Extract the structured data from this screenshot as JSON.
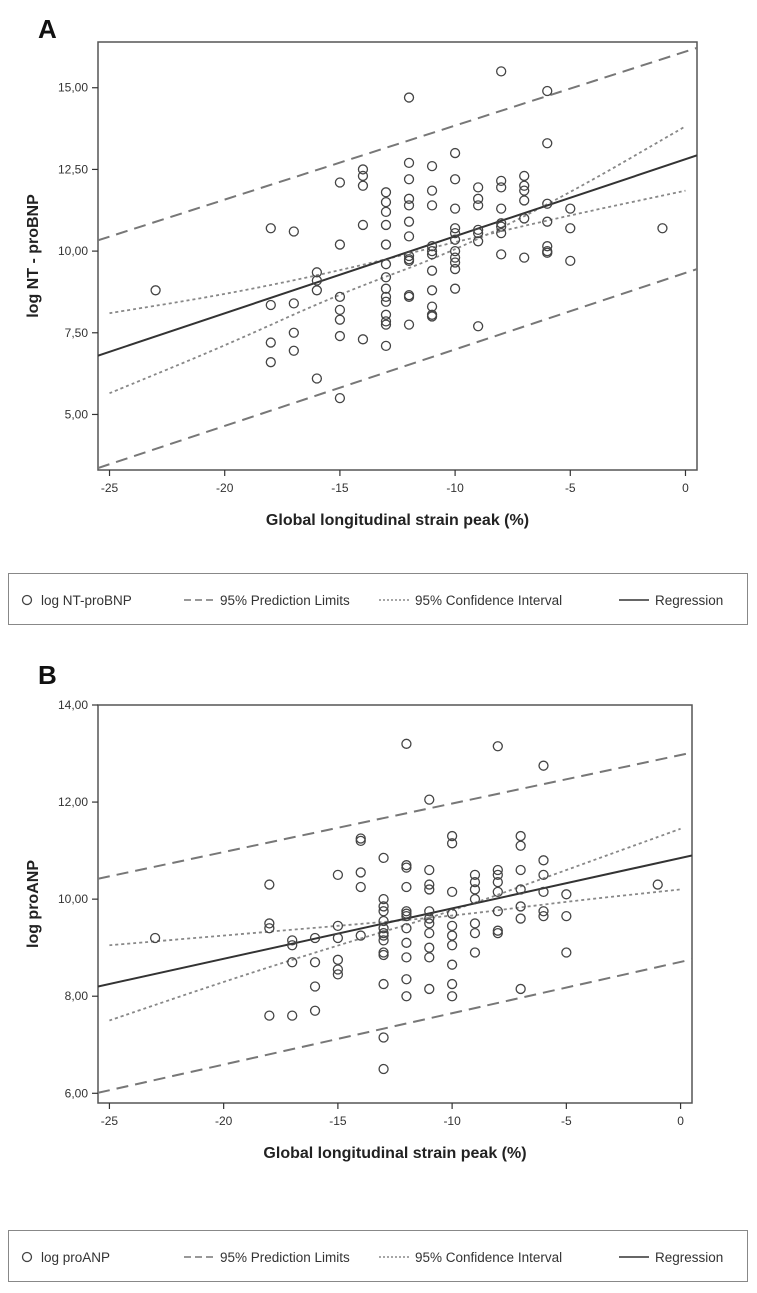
{
  "panels": [
    {
      "letter": "A",
      "chart_data": {
        "type": "scatter",
        "xlabel": "Global longitudinal strain peak (%)",
        "ylabel": "log NT - proBNP",
        "xlim": [
          -25.5,
          0.5
        ],
        "ylim": [
          3.3,
          16.4
        ],
        "x_ticks": [
          -25,
          -20,
          -15,
          -10,
          -5,
          0
        ],
        "x_tick_labels": [
          "-25",
          "-20",
          "-15",
          "-10",
          "-5",
          "0"
        ],
        "y_ticks": [
          5,
          7.5,
          10,
          12.5,
          15
        ],
        "y_tick_labels": [
          "5,00",
          "7,50",
          "10,00",
          "12,50",
          "15,00"
        ],
        "grid": false,
        "legend_position": "bottom",
        "series": [
          {
            "name": "log NT-proBNP",
            "kind": "points",
            "x": [
              -23,
              -18,
              -18,
              -18,
              -18,
              -17,
              -17,
              -17,
              -17,
              -16,
              -16,
              -16,
              -16,
              -15,
              -15,
              -15,
              -15,
              -15,
              -15,
              -15,
              -14,
              -14,
              -14,
              -14,
              -14,
              -13,
              -13,
              -13,
              -13,
              -13,
              -13,
              -13,
              -13,
              -13,
              -13,
              -13,
              -13,
              -13,
              -13,
              -12,
              -12,
              -12,
              -12,
              -12,
              -12,
              -12,
              -12,
              -12,
              -12,
              -12,
              -12,
              -12,
              -11,
              -11,
              -11,
              -11,
              -11,
              -11,
              -11,
              -11,
              -11,
              -11,
              -11,
              -10,
              -10,
              -10,
              -10,
              -10,
              -10,
              -10,
              -10,
              -10,
              -10,
              -10,
              -9,
              -9,
              -9,
              -9,
              -9,
              -9,
              -9,
              -8,
              -8,
              -8,
              -8,
              -8,
              -8,
              -8,
              -8,
              -7,
              -7,
              -7,
              -7,
              -7,
              -7,
              -6,
              -6,
              -6,
              -6,
              -6,
              -6,
              -6,
              -5,
              -5,
              -5,
              -1
            ],
            "y": [
              8.8,
              10.7,
              8.35,
              7.2,
              6.6,
              10.6,
              8.4,
              7.5,
              6.95,
              9.35,
              9.1,
              8.8,
              6.1,
              12.1,
              10.2,
              8.6,
              8.2,
              7.9,
              7.4,
              5.5,
              12.5,
              12.3,
              12.0,
              10.8,
              7.3,
              11.8,
              11.5,
              11.2,
              10.8,
              10.2,
              9.6,
              9.2,
              8.85,
              8.6,
              8.45,
              8.05,
              7.85,
              7.75,
              7.1,
              14.7,
              12.7,
              12.2,
              11.6,
              11.4,
              10.9,
              10.45,
              9.85,
              9.75,
              9.7,
              8.65,
              8.6,
              7.75,
              12.6,
              11.85,
              11.4,
              10.15,
              10.0,
              9.9,
              9.4,
              8.8,
              8.3,
              8.05,
              8.0,
              13.0,
              12.2,
              11.3,
              10.7,
              10.55,
              10.35,
              10.0,
              9.8,
              9.65,
              9.45,
              8.85,
              11.95,
              11.6,
              11.4,
              10.65,
              10.55,
              10.3,
              7.7,
              15.5,
              12.15,
              11.95,
              11.3,
              10.85,
              10.75,
              10.55,
              9.9,
              12.3,
              12.0,
              11.85,
              11.55,
              11.0,
              9.8,
              14.9,
              13.3,
              11.45,
              10.9,
              10.15,
              10.0,
              9.95,
              11.3,
              10.7,
              9.7,
              10.7
            ]
          },
          {
            "name": "95% Prediction Limits",
            "kind": "line",
            "dash": "long",
            "x": [
              -25.5,
              0.5
            ],
            "y": [
              10.33,
              16.22
            ]
          },
          {
            "name": "95% Prediction Limits",
            "kind": "line",
            "dash": "long",
            "x": [
              -25.5,
              0.5
            ],
            "y": [
              3.36,
              9.45
            ]
          },
          {
            "name": "95% Confidence Interval",
            "kind": "curve",
            "dash": "short",
            "x": [
              -25,
              -20,
              -15,
              -10,
              -5,
              0
            ],
            "y": [
              8.1,
              8.67,
              9.4,
              10.28,
              11.1,
              11.85
            ]
          },
          {
            "name": "95% Confidence Interval",
            "kind": "curve",
            "dash": "short",
            "x": [
              -25,
              -20,
              -15,
              -10,
              -5,
              0
            ],
            "y": [
              5.65,
              7.1,
              8.7,
              10.0,
              11.78,
              13.82
            ]
          },
          {
            "name": "Regression",
            "kind": "line",
            "dash": "solid",
            "x": [
              -25.5,
              0.5
            ],
            "y": [
              6.8,
              12.93
            ]
          }
        ]
      }
    },
    {
      "letter": "B",
      "chart_data": {
        "type": "scatter",
        "xlabel": "Global longitudinal strain peak (%)",
        "ylabel": "log proANP",
        "xlim": [
          -25.5,
          0.5
        ],
        "ylim": [
          5.8,
          14.0
        ],
        "x_ticks": [
          -25,
          -20,
          -15,
          -10,
          -5,
          0
        ],
        "x_tick_labels": [
          "-25",
          "-20",
          "-15",
          "-10",
          "-5",
          "0"
        ],
        "y_ticks": [
          6,
          8,
          10,
          12,
          14
        ],
        "y_tick_labels": [
          "6,00",
          "8,00",
          "10,00",
          "12,00",
          "14,00"
        ],
        "grid": false,
        "legend_position": "bottom",
        "series": [
          {
            "name": "log proANP",
            "kind": "points",
            "x": [
              -23,
              -18,
              -18,
              -18,
              -18,
              -17,
              -17,
              -17,
              -17,
              -16,
              -16,
              -16,
              -16,
              -15,
              -15,
              -15,
              -15,
              -15,
              -15,
              -14,
              -14,
              -14,
              -14,
              -14,
              -13,
              -13,
              -13,
              -13,
              -13,
              -13,
              -13,
              -13,
              -13,
              -13,
              -13,
              -13,
              -13,
              -13,
              -12,
              -12,
              -12,
              -12,
              -12,
              -12,
              -12,
              -12,
              -12,
              -12,
              -12,
              -12,
              -11,
              -11,
              -11,
              -11,
              -11,
              -11,
              -11,
              -11,
              -11,
              -11,
              -11,
              -10,
              -10,
              -10,
              -10,
              -10,
              -10,
              -10,
              -10,
              -10,
              -10,
              -9,
              -9,
              -9,
              -9,
              -9,
              -9,
              -9,
              -8,
              -8,
              -8,
              -8,
              -8,
              -8,
              -8,
              -8,
              -7,
              -7,
              -7,
              -7,
              -7,
              -7,
              -7,
              -6,
              -6,
              -6,
              -6,
              -6,
              -6,
              -5,
              -5,
              -5,
              -1
            ],
            "y": [
              9.2,
              10.3,
              9.5,
              9.4,
              7.6,
              9.15,
              9.05,
              8.7,
              7.6,
              9.2,
              8.7,
              8.2,
              7.7,
              10.5,
              9.45,
              9.2,
              8.75,
              8.55,
              8.45,
              11.25,
              11.2,
              10.55,
              10.25,
              9.25,
              10.85,
              10.0,
              9.85,
              9.75,
              9.55,
              9.4,
              9.3,
              9.15,
              8.9,
              8.85,
              8.25,
              7.15,
              6.5,
              9.25,
              13.2,
              10.7,
              10.65,
              10.25,
              9.75,
              9.7,
              9.65,
              9.4,
              9.1,
              8.8,
              8.35,
              8.0,
              12.05,
              10.6,
              10.3,
              10.2,
              9.75,
              9.6,
              9.5,
              9.3,
              9.0,
              8.8,
              8.15,
              11.3,
              11.15,
              10.15,
              9.7,
              9.45,
              9.25,
              9.05,
              8.65,
              8.25,
              8.0,
              10.5,
              10.35,
              10.2,
              10.0,
              9.5,
              9.3,
              8.9,
              13.15,
              10.6,
              10.5,
              10.35,
              10.15,
              9.75,
              9.35,
              9.3,
              11.3,
              11.1,
              10.6,
              10.2,
              9.85,
              9.6,
              8.15,
              12.75,
              10.8,
              10.5,
              10.15,
              9.75,
              9.65,
              10.1,
              9.65,
              8.9,
              10.3
            ]
          },
          {
            "name": "95% Prediction Limits",
            "kind": "line",
            "dash": "long",
            "x": [
              -25.5,
              0.5
            ],
            "y": [
              10.42,
              13.02
            ]
          },
          {
            "name": "95% Prediction Limits",
            "kind": "line",
            "dash": "long",
            "x": [
              -25.5,
              0.5
            ],
            "y": [
              6.01,
              8.76
            ]
          },
          {
            "name": "95% Confidence Interval",
            "kind": "curve",
            "dash": "short",
            "x": [
              -25,
              -20,
              -15,
              -10,
              -5,
              0
            ],
            "y": [
              9.05,
              9.25,
              9.45,
              9.65,
              9.95,
              10.2
            ]
          },
          {
            "name": "95% Confidence Interval",
            "kind": "curve",
            "dash": "short",
            "x": [
              -25,
              -20,
              -15,
              -10,
              -5,
              0
            ],
            "y": [
              7.5,
              8.3,
              9.05,
              9.75,
              10.6,
              11.45
            ]
          },
          {
            "name": "Regression",
            "kind": "line",
            "dash": "solid",
            "x": [
              -25.5,
              0.5
            ],
            "y": [
              8.2,
              10.9
            ]
          }
        ]
      }
    }
  ],
  "legends": [
    {
      "items": [
        {
          "symbol": "circle",
          "label": "log NT-proBNP"
        },
        {
          "symbol": "long-dash",
          "label": "95% Prediction Limits"
        },
        {
          "symbol": "short-dash",
          "label": "95% Confidence Interval"
        },
        {
          "symbol": "solid",
          "label": "Regression"
        }
      ]
    },
    {
      "items": [
        {
          "symbol": "circle",
          "label": "log proANP"
        },
        {
          "symbol": "long-dash",
          "label": "95% Prediction Limits"
        },
        {
          "symbol": "short-dash",
          "label": "95% Confidence Interval"
        },
        {
          "symbol": "solid",
          "label": "Regression"
        }
      ]
    }
  ],
  "colors": {
    "points": "#444444",
    "regression": "#333333",
    "prediction": "#777777",
    "confidence": "#888888",
    "axis": "#333333",
    "frame": "#555555"
  }
}
